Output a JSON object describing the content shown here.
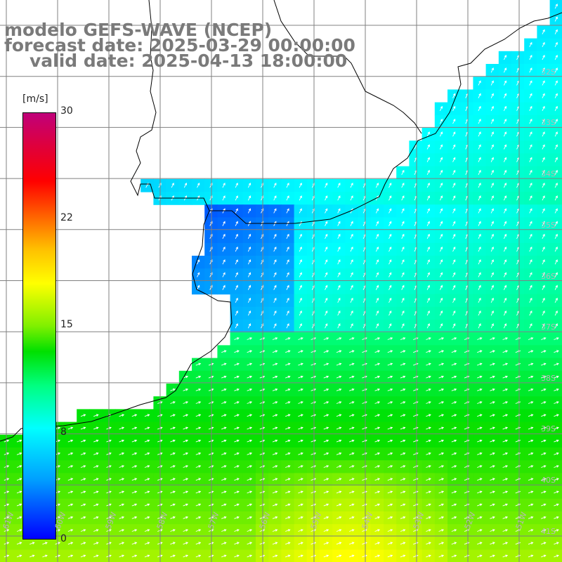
{
  "header": {
    "model": "modelo GEFS-WAVE (NCEP)",
    "forecast": "forecast date: 2025-03-29 00:00:00",
    "valid": "valid date: 2025-04-13 18:00:00"
  },
  "colorbar": {
    "unit": "[m/s]",
    "ticks": [
      {
        "label": "30",
        "value": 30
      },
      {
        "label": "22",
        "value": 22
      },
      {
        "label": "15",
        "value": 15
      },
      {
        "label": "8",
        "value": 8
      },
      {
        "label": "0",
        "value": 0
      }
    ],
    "colors": [
      "#0000ff",
      "#00a0ff",
      "#00ffff",
      "#00ff80",
      "#00e000",
      "#80f000",
      "#ffff00",
      "#ffc000",
      "#ff6000",
      "#ff0000",
      "#c0007a"
    ]
  },
  "axes": {
    "lon_labels": [
      "61W",
      "60W",
      "59W",
      "58W",
      "57W",
      "56W",
      "55W",
      "54W",
      "53W",
      "52W",
      "51W"
    ],
    "lat_labels": [
      "32S",
      "33S",
      "34S",
      "35S",
      "36S",
      "37S",
      "38S",
      "39S",
      "40S",
      "41S"
    ]
  },
  "colors": {
    "land": "#ffffff",
    "coastline": "#000000",
    "grid": "#808080",
    "arrows": "#ffffff",
    "title_text": "#7a7a7a"
  }
}
